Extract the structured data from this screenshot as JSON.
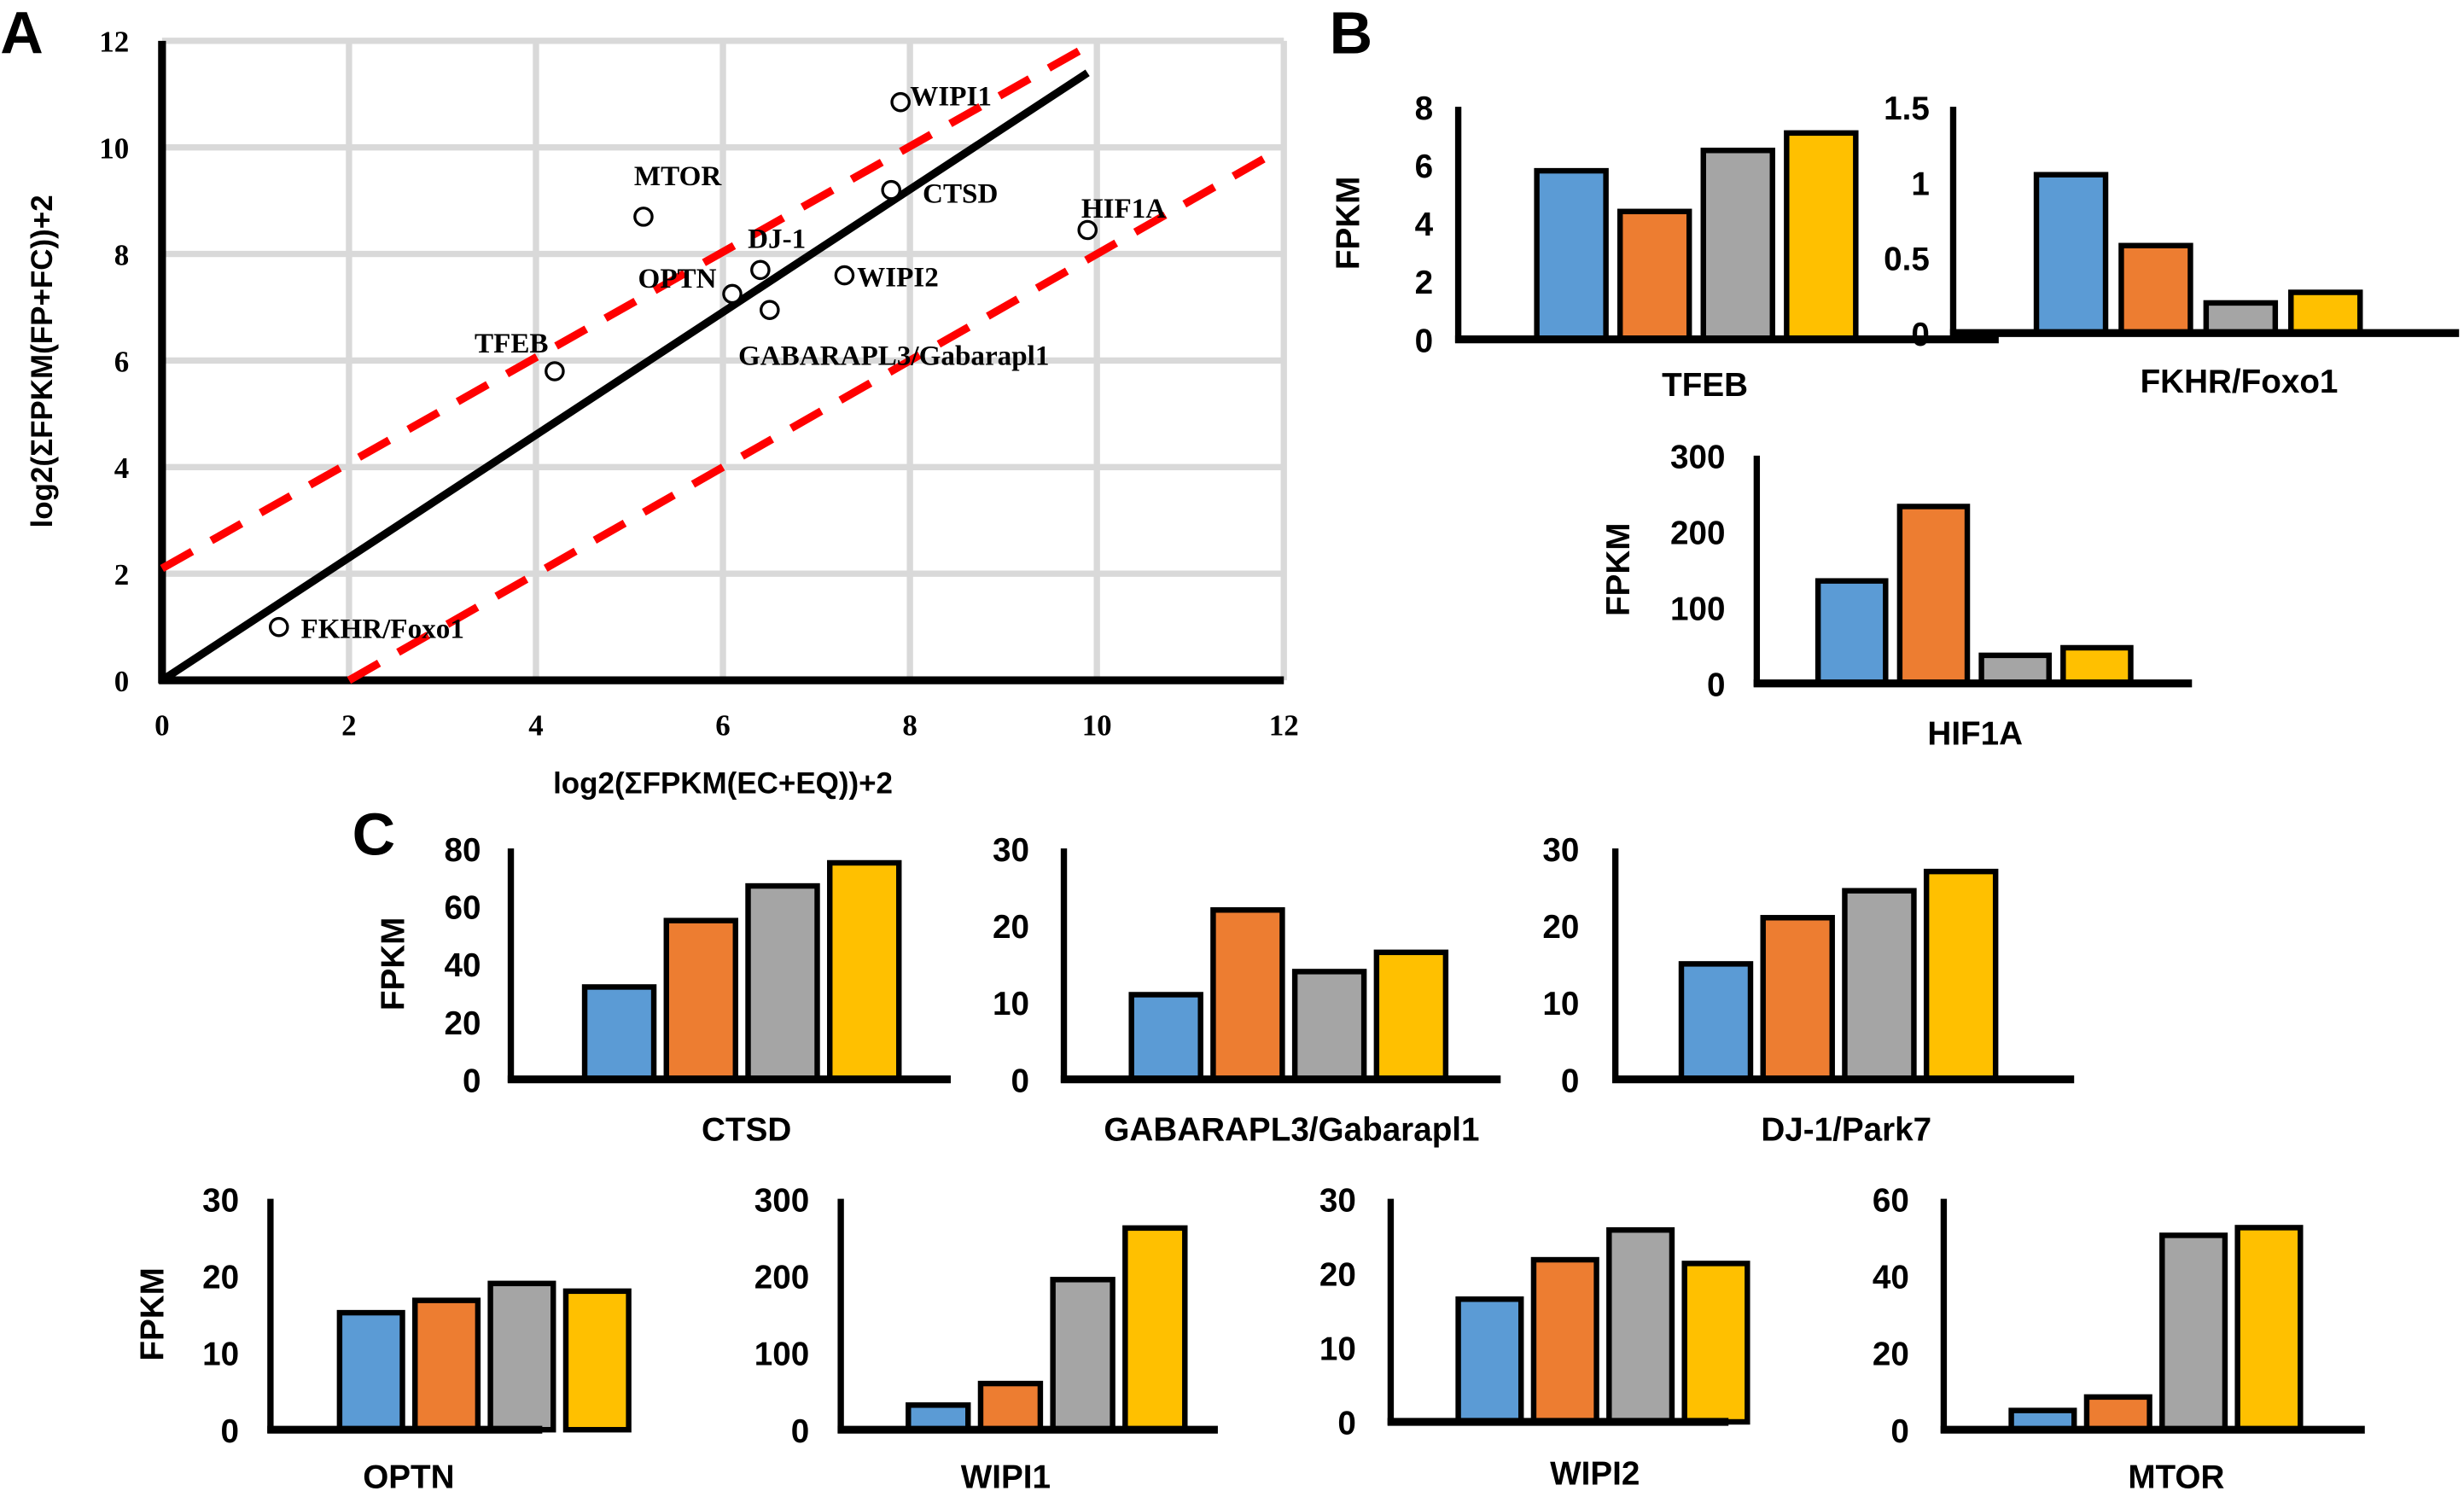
{
  "panel_labels": {
    "a": "A",
    "b": "B",
    "c": "C"
  },
  "colors": {
    "series": [
      "#5b9bd5",
      "#ed7d31",
      "#a5a5a5",
      "#ffc000"
    ],
    "fit_line": "#000000",
    "bounds": "#ff0000",
    "grid": "#d9d9d9"
  },
  "chart_data": [
    {
      "panel": "A",
      "type": "scatter",
      "xlabel": "log2(ΣFPKM(EC+EQ))+2",
      "ylabel": "log2(ΣFPKM(FP+FC))+2",
      "xlim": [
        0,
        12
      ],
      "ylim": [
        0,
        12
      ],
      "xticks": [
        "0",
        "2",
        "4",
        "6",
        "8",
        "10",
        "12"
      ],
      "yticks": [
        "0",
        "2",
        "4",
        "6",
        "8",
        "10",
        "12"
      ],
      "grid": true,
      "points": [
        {
          "label": "FKHR/Foxo1",
          "x": 1.25,
          "y": 1.0
        },
        {
          "label": "TFEB",
          "x": 4.2,
          "y": 5.8
        },
        {
          "label": "MTOR",
          "x": 5.15,
          "y": 8.7
        },
        {
          "label": "OPTN",
          "x": 6.1,
          "y": 7.25
        },
        {
          "label": "DJ-1",
          "x": 6.4,
          "y": 7.7
        },
        {
          "label": "GABARAPL3/Gabarapl1",
          "x": 6.5,
          "y": 6.95
        },
        {
          "label": "WIPI2",
          "x": 7.3,
          "y": 7.6
        },
        {
          "label": "CTSD",
          "x": 7.8,
          "y": 9.2
        },
        {
          "label": "WIPI1",
          "x": 7.9,
          "y": 10.85
        },
        {
          "label": "HIF1A",
          "x": 9.9,
          "y": 8.45
        }
      ],
      "lines": [
        {
          "style": "solid",
          "from": [
            0,
            0
          ],
          "to": [
            9.9,
            11.4
          ]
        },
        {
          "style": "dashed",
          "from": [
            0,
            2.1
          ],
          "to": [
            9.9,
            11.9
          ]
        },
        {
          "style": "dashed",
          "from": [
            2.0,
            0
          ],
          "to": [
            11.8,
            9.8
          ]
        }
      ]
    },
    {
      "panel": "B",
      "type": "bar",
      "title": "TFEB",
      "ylabel": "FPKM",
      "ylim": [
        0,
        8
      ],
      "yticks": [
        "0",
        "2",
        "4",
        "6",
        "8"
      ],
      "values": [
        5.8,
        4.4,
        6.5,
        7.1
      ]
    },
    {
      "panel": "B",
      "type": "bar",
      "title": "FKHR/Foxo1",
      "ylabel": "",
      "ylim": [
        0,
        1.5
      ],
      "yticks": [
        "0",
        "0.5",
        "1",
        "1.5"
      ],
      "values": [
        1.05,
        0.58,
        0.2,
        0.27
      ]
    },
    {
      "panel": "B",
      "type": "bar",
      "title": "HIF1A",
      "ylabel": "FPKM",
      "ylim": [
        0,
        300
      ],
      "yticks": [
        "0",
        "100",
        "200",
        "300"
      ],
      "values": [
        135,
        233,
        37,
        47
      ]
    },
    {
      "panel": "C",
      "type": "bar",
      "title": "CTSD",
      "ylabel": "FPKM",
      "ylim": [
        0,
        80
      ],
      "yticks": [
        "0",
        "20",
        "40",
        "60",
        "80"
      ],
      "values": [
        32,
        55,
        67,
        75
      ]
    },
    {
      "panel": "C",
      "type": "bar",
      "title": "GABARAPL3/Gabarapl1",
      "ylabel": "",
      "ylim": [
        0,
        30
      ],
      "yticks": [
        "0",
        "10",
        "20",
        "30"
      ],
      "values": [
        11,
        22,
        14,
        16.5
      ]
    },
    {
      "panel": "C",
      "type": "bar",
      "title": "DJ-1/Park7",
      "ylabel": "",
      "ylim": [
        0,
        30
      ],
      "yticks": [
        "0",
        "10",
        "20",
        "30"
      ],
      "values": [
        15,
        21,
        24.5,
        27
      ]
    },
    {
      "panel": "C",
      "type": "bar",
      "title": "OPTN",
      "ylabel": "FPKM",
      "ylim": [
        0,
        30
      ],
      "yticks": [
        "0",
        "10",
        "20",
        "30"
      ],
      "values": [
        15.2,
        16.8,
        19,
        18
      ]
    },
    {
      "panel": "C",
      "type": "bar",
      "title": "WIPI1",
      "ylabel": "",
      "ylim": [
        0,
        300
      ],
      "yticks": [
        "0",
        "100",
        "200",
        "300"
      ],
      "values": [
        32,
        60,
        195,
        262
      ]
    },
    {
      "panel": "C",
      "type": "bar",
      "title": "WIPI2",
      "ylabel": "",
      "ylim": [
        0,
        30
      ],
      "yticks": [
        "0",
        "10",
        "20",
        "30"
      ],
      "values": [
        16.5,
        21.8,
        25.8,
        21.3
      ]
    },
    {
      "panel": "C",
      "type": "bar",
      "title": "MTOR",
      "ylabel": "",
      "ylim": [
        0,
        60
      ],
      "yticks": [
        "0",
        "20",
        "40",
        "60"
      ],
      "values": [
        5,
        8.5,
        50.5,
        52.5
      ]
    }
  ]
}
